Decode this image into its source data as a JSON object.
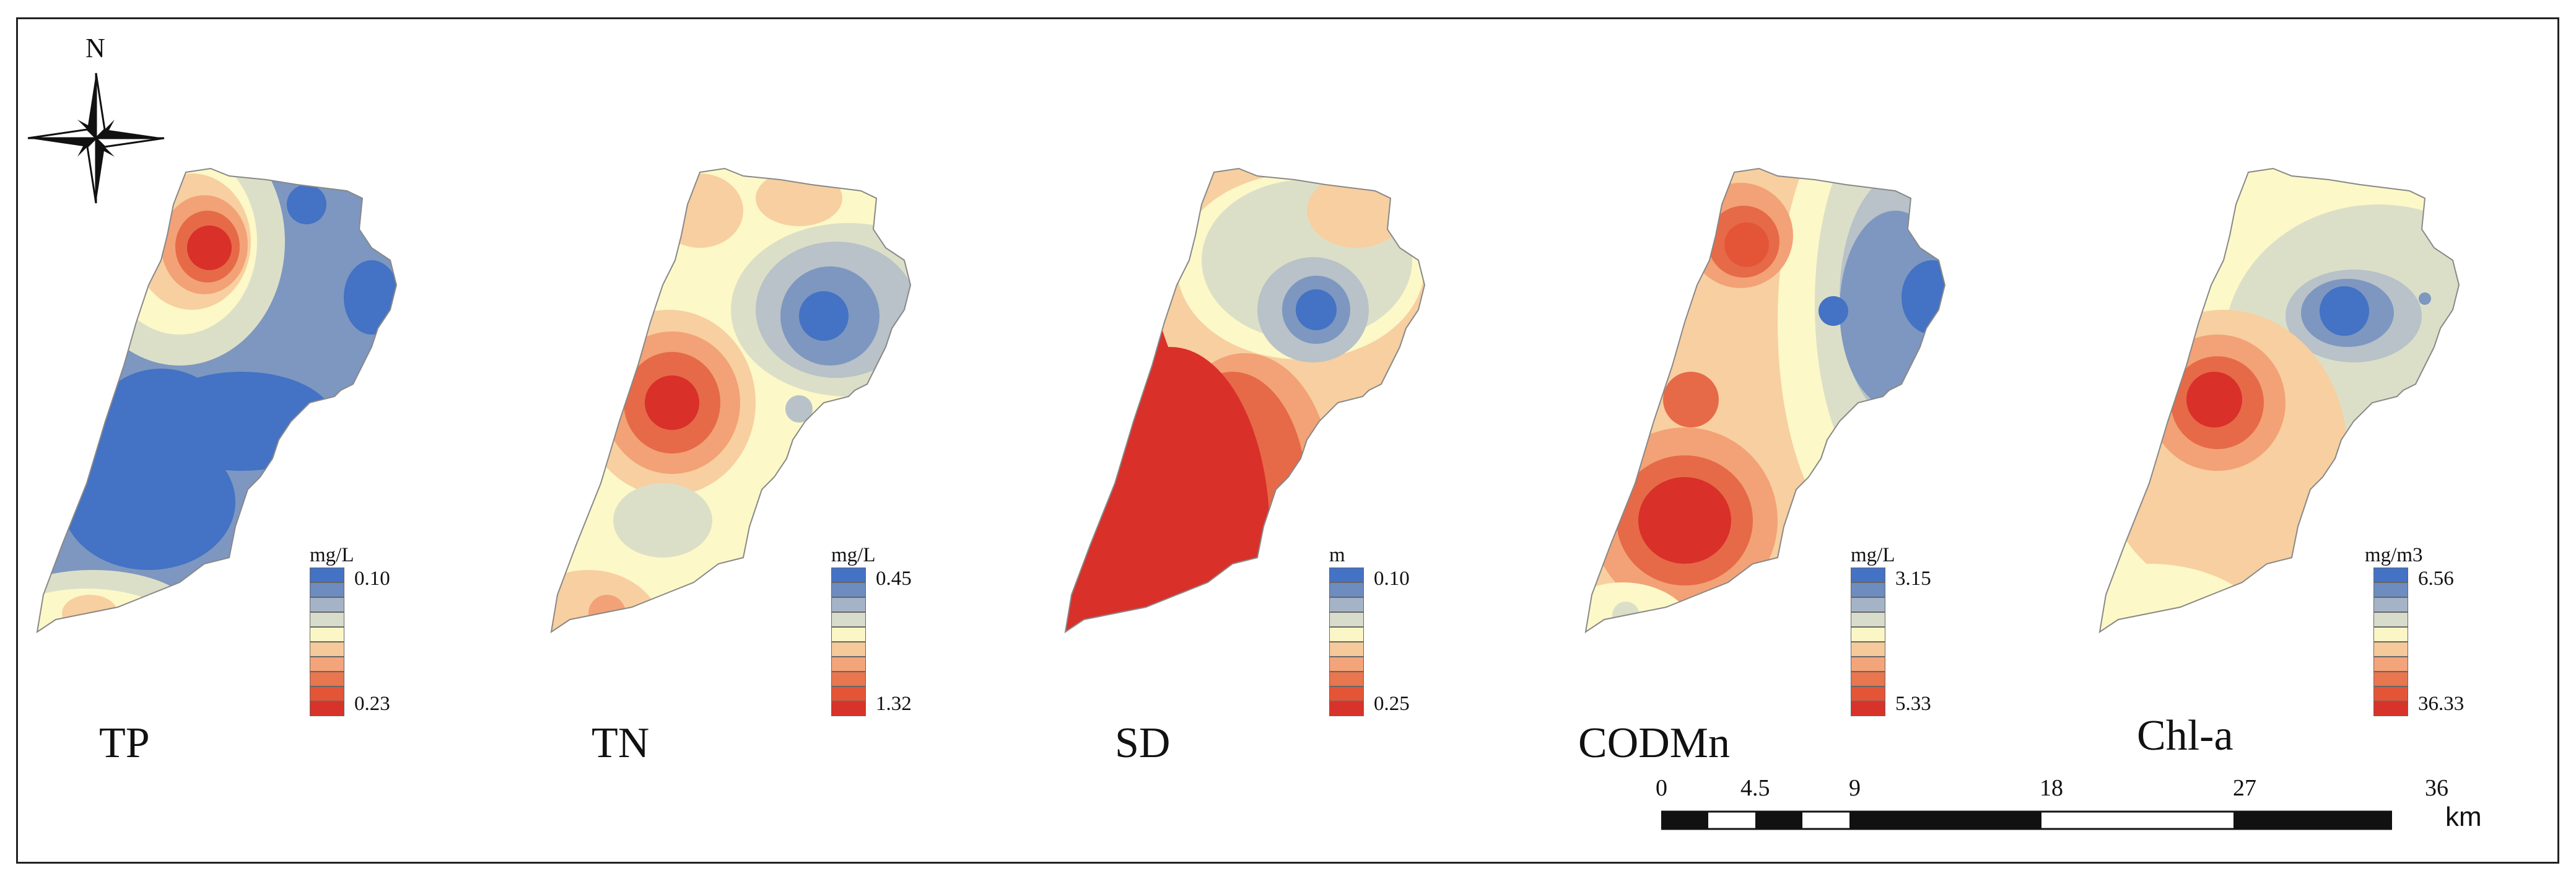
{
  "north_arrow": {
    "label": "N",
    "icon": "north-arrow-compass-icon"
  },
  "panels": [
    {
      "id": "tp",
      "title": "TP",
      "unit": "mg/L",
      "top_value": "0.10",
      "bottom_value": "0.23"
    },
    {
      "id": "tn",
      "title": "TN",
      "unit": "mg/L",
      "top_value": "0.45",
      "bottom_value": "1.32"
    },
    {
      "id": "sd",
      "title": "SD",
      "unit": "m",
      "top_value": "0.10",
      "bottom_value": "0.25"
    },
    {
      "id": "codmn",
      "title": "CODMn",
      "unit": "mg/L",
      "top_value": "3.15",
      "bottom_value": "5.33"
    },
    {
      "id": "chla",
      "title": "Chl-a",
      "unit": "mg/m3",
      "top_value": "6.56",
      "bottom_value": "36.33"
    }
  ],
  "legend_colors": [
    "#4472c4",
    "#6d8cbf",
    "#a5b3c6",
    "#d7dccb",
    "#fbf6c6",
    "#f6c99a",
    "#f3a47a",
    "#e8764e",
    "#e45538",
    "#d7332a"
  ],
  "scale_bar": {
    "ticks": [
      "0",
      "4.5",
      "9",
      "18",
      "27",
      "36"
    ],
    "unit": "km"
  },
  "colors": {
    "blue_high": "#4472c4",
    "blue_mid": "#7d97c0",
    "grey_blue": "#b8c2c8",
    "neutral": "#dcdfc8",
    "pale_yellow": "#fcf8c8",
    "light_orange": "#f8cfa0",
    "orange": "#f2a276",
    "red_orange": "#e66a48",
    "red": "#d9302a"
  }
}
